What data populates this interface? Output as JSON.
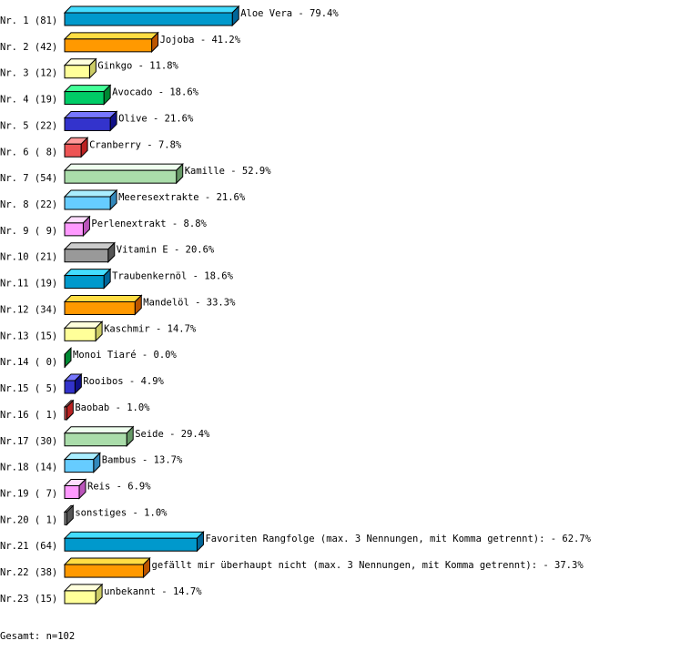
{
  "chart_data": {
    "type": "bar",
    "orientation": "horizontal",
    "style": "3d",
    "categories": [
      "Nr. 1",
      "Nr. 2",
      "Nr. 3",
      "Nr. 4",
      "Nr. 5",
      "Nr. 6",
      "Nr. 7",
      "Nr. 8",
      "Nr. 9",
      "Nr.10",
      "Nr.11",
      "Nr.12",
      "Nr.13",
      "Nr.14",
      "Nr.15",
      "Nr.16",
      "Nr.17",
      "Nr.18",
      "Nr.19",
      "Nr.20",
      "Nr.21",
      "Nr.22",
      "Nr.23"
    ],
    "counts": [
      81,
      42,
      12,
      19,
      22,
      8,
      54,
      22,
      9,
      21,
      19,
      34,
      15,
      0,
      5,
      1,
      30,
      14,
      7,
      1,
      64,
      38,
      15
    ],
    "labels": [
      "Aloe Vera",
      "Jojoba",
      "Ginkgo",
      "Avocado",
      "Olive",
      "Cranberry",
      "Kamille",
      "Meeresextrakte",
      "Perlenextrakt",
      "Vitamin E",
      "Traubenkernöl",
      "Mandelöl",
      "Kaschmir",
      "Monoi Tiaré",
      "Rooibos",
      "Baobab",
      "Seide",
      "Bambus",
      "Reis",
      "sonstiges",
      "Favoriten Rangfolge (max. 3 Nennungen, mit Komma getrennt):",
      "gefällt mir überhaupt nicht (max. 3 Nennungen, mit Komma getrennt):",
      "unbekannt"
    ],
    "values": [
      79.4,
      41.2,
      11.8,
      18.6,
      21.6,
      7.8,
      52.9,
      21.6,
      8.8,
      20.6,
      18.6,
      33.3,
      14.7,
      0.0,
      4.9,
      1.0,
      29.4,
      13.7,
      6.9,
      1.0,
      62.7,
      37.3,
      14.7
    ],
    "unit": "%",
    "colors": [
      {
        "front": "#0099cc",
        "top": "#44ddff",
        "side": "#006699"
      },
      {
        "front": "#ff9900",
        "top": "#ffdd44",
        "side": "#bb5500"
      },
      {
        "front": "#ffff99",
        "top": "#ffffdd",
        "side": "#cccc66"
      },
      {
        "front": "#00cc66",
        "top": "#44ff99",
        "side": "#008833"
      },
      {
        "front": "#3333cc",
        "top": "#7777ff",
        "side": "#111188"
      },
      {
        "front": "#ee5555",
        "top": "#ff9999",
        "side": "#bb2222"
      },
      {
        "front": "#aaddaa",
        "top": "#eeffee",
        "side": "#669966"
      },
      {
        "front": "#66ccff",
        "top": "#aaeeff",
        "side": "#3388bb"
      },
      {
        "front": "#ff99ff",
        "top": "#ffddff",
        "side": "#bb55bb"
      },
      {
        "front": "#999999",
        "top": "#cccccc",
        "side": "#555555"
      }
    ],
    "footer": "Gesamt: n=102"
  }
}
